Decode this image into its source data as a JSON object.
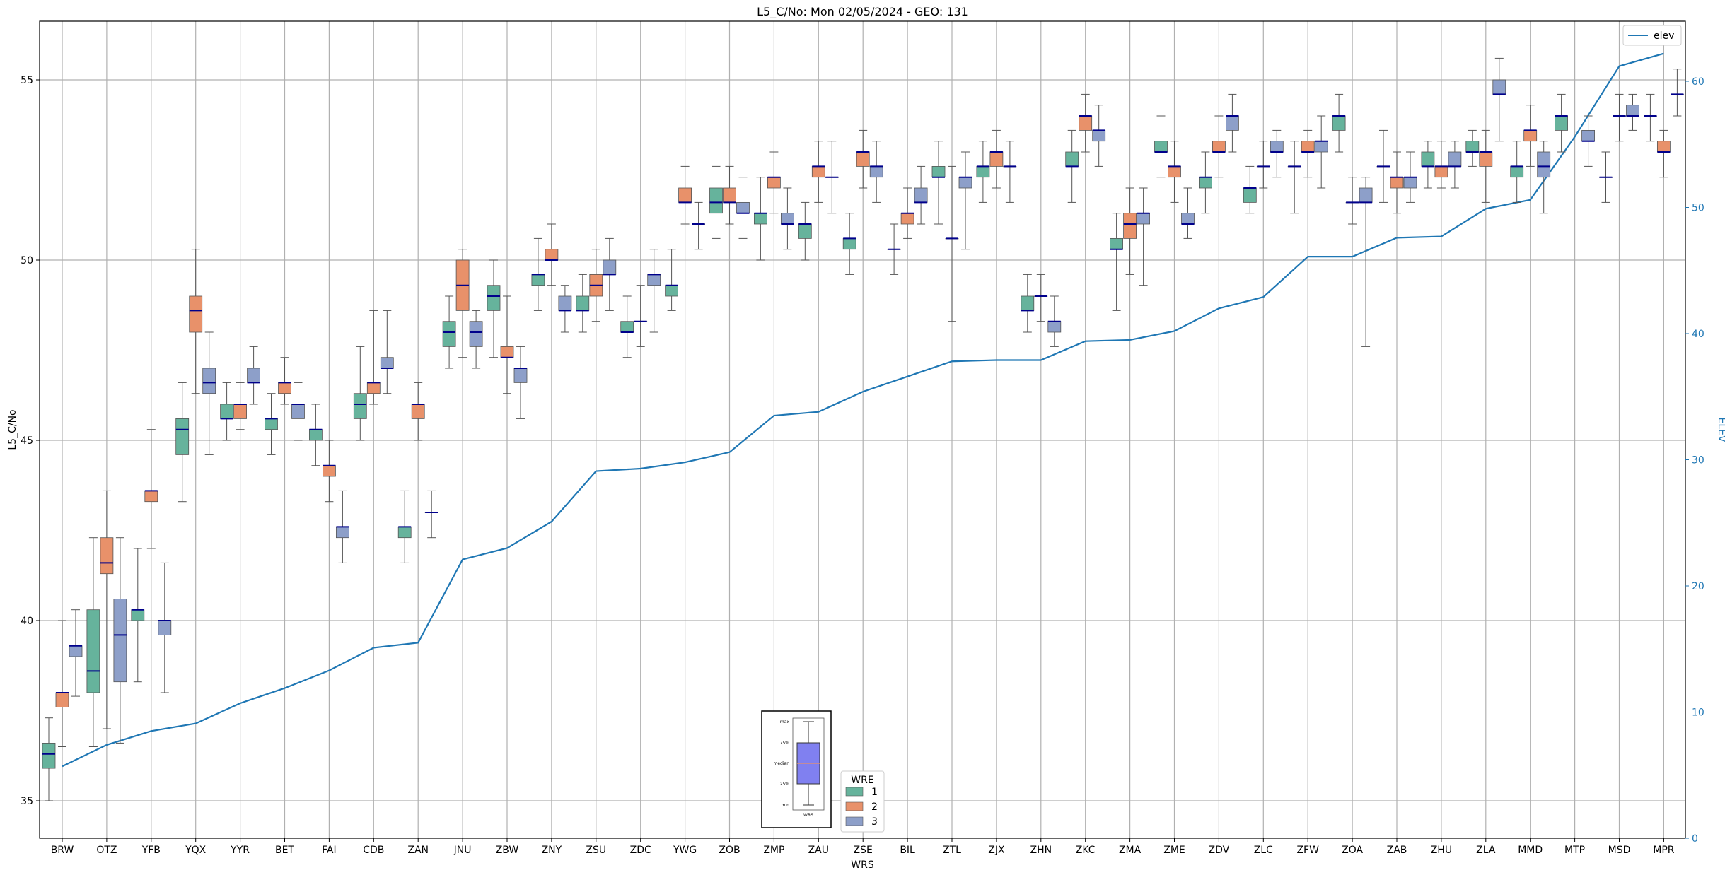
{
  "chart_data": {
    "type": "box",
    "title": "L5_C/No: Mon 02/05/2024 - GEO: 131",
    "xlabel": "WRS",
    "ylabel": "L5_C/No",
    "y2label": "ELEV",
    "ylim": [
      34,
      56.6
    ],
    "y2lim": [
      0,
      65
    ],
    "yticks": [
      35,
      40,
      45,
      50,
      55
    ],
    "y2ticks": [
      0,
      10,
      20,
      30,
      40,
      50,
      60
    ],
    "grid": true,
    "categories": [
      "BRW",
      "OTZ",
      "YFB",
      "YQX",
      "YYR",
      "BET",
      "FAI",
      "CDB",
      "ZAN",
      "JNU",
      "ZBW",
      "ZNY",
      "ZSU",
      "ZDC",
      "YWG",
      "ZOB",
      "ZMP",
      "ZAU",
      "ZSE",
      "BIL",
      "ZTL",
      "ZJX",
      "ZHN",
      "ZKC",
      "ZMA",
      "ZME",
      "ZDV",
      "ZLC",
      "ZFW",
      "ZOA",
      "ZAB",
      "ZHU",
      "ZLA",
      "MMD",
      "MTP",
      "MSD",
      "MPR"
    ],
    "elev": [
      5.7,
      7.4,
      8.5,
      9.1,
      10.7,
      11.9,
      13.3,
      15.1,
      15.5,
      22.1,
      23.0,
      25.1,
      29.1,
      29.3,
      29.8,
      30.6,
      33.5,
      33.8,
      35.4,
      36.6,
      37.8,
      37.9,
      37.9,
      39.4,
      39.5,
      40.2,
      42.0,
      42.9,
      46.1,
      46.1,
      47.6,
      47.7,
      49.9,
      50.6,
      55.6,
      61.2,
      62.2
    ],
    "wre_colors": {
      "1": "#66b39c",
      "2": "#e8916a",
      "3": "#8d9fc9"
    },
    "elev_color": "#1f77b4",
    "median_color": "#00008b",
    "boxes": [
      {
        "wrs": "BRW",
        "wre": 1,
        "min": 35.0,
        "q1": 35.9,
        "med": 36.3,
        "q3": 36.6,
        "max": 37.3
      },
      {
        "wrs": "BRW",
        "wre": 2,
        "min": 36.5,
        "q1": 37.6,
        "med": 38.0,
        "q3": 38.0,
        "max": 40.0
      },
      {
        "wrs": "BRW",
        "wre": 3,
        "min": 37.9,
        "q1": 39.0,
        "med": 39.3,
        "q3": 39.3,
        "max": 40.3
      },
      {
        "wrs": "OTZ",
        "wre": 1,
        "min": 36.5,
        "q1": 38.0,
        "med": 38.6,
        "q3": 40.3,
        "max": 42.3
      },
      {
        "wrs": "OTZ",
        "wre": 2,
        "min": 37.0,
        "q1": 41.3,
        "med": 41.6,
        "q3": 42.3,
        "max": 43.6
      },
      {
        "wrs": "OTZ",
        "wre": 3,
        "min": 36.6,
        "q1": 38.3,
        "med": 39.6,
        "q3": 40.6,
        "max": 42.3
      },
      {
        "wrs": "YFB",
        "wre": 1,
        "min": 38.3,
        "q1": 40.0,
        "med": 40.3,
        "q3": 40.3,
        "max": 42.0
      },
      {
        "wrs": "YFB",
        "wre": 2,
        "min": 42.0,
        "q1": 43.3,
        "med": 43.6,
        "q3": 43.6,
        "max": 45.3
      },
      {
        "wrs": "YFB",
        "wre": 3,
        "min": 38.0,
        "q1": 39.6,
        "med": 40.0,
        "q3": 40.0,
        "max": 41.6
      },
      {
        "wrs": "YQX",
        "wre": 1,
        "min": 43.3,
        "q1": 44.6,
        "med": 45.3,
        "q3": 45.6,
        "max": 46.6
      },
      {
        "wrs": "YQX",
        "wre": 2,
        "min": 46.3,
        "q1": 48.0,
        "med": 48.6,
        "q3": 49.0,
        "max": 50.3
      },
      {
        "wrs": "YQX",
        "wre": 3,
        "min": 44.6,
        "q1": 46.3,
        "med": 46.6,
        "q3": 47.0,
        "max": 48.0
      },
      {
        "wrs": "YYR",
        "wre": 1,
        "min": 45.0,
        "q1": 45.6,
        "med": 45.6,
        "q3": 46.0,
        "max": 46.6
      },
      {
        "wrs": "YYR",
        "wre": 2,
        "min": 45.3,
        "q1": 45.6,
        "med": 46.0,
        "q3": 46.0,
        "max": 46.6
      },
      {
        "wrs": "YYR",
        "wre": 3,
        "min": 46.0,
        "q1": 46.6,
        "med": 46.6,
        "q3": 47.0,
        "max": 47.6
      },
      {
        "wrs": "BET",
        "wre": 1,
        "min": 44.6,
        "q1": 45.3,
        "med": 45.6,
        "q3": 45.6,
        "max": 46.3
      },
      {
        "wrs": "BET",
        "wre": 2,
        "min": 46.0,
        "q1": 46.3,
        "med": 46.6,
        "q3": 46.6,
        "max": 47.3
      },
      {
        "wrs": "BET",
        "wre": 3,
        "min": 45.0,
        "q1": 45.6,
        "med": 46.0,
        "q3": 46.0,
        "max": 46.6
      },
      {
        "wrs": "FAI",
        "wre": 1,
        "min": 44.3,
        "q1": 45.0,
        "med": 45.3,
        "q3": 45.3,
        "max": 46.0
      },
      {
        "wrs": "FAI",
        "wre": 2,
        "min": 43.3,
        "q1": 44.0,
        "med": 44.3,
        "q3": 44.3,
        "max": 45.0
      },
      {
        "wrs": "FAI",
        "wre": 3,
        "min": 41.6,
        "q1": 42.3,
        "med": 42.6,
        "q3": 42.6,
        "max": 43.6
      },
      {
        "wrs": "CDB",
        "wre": 1,
        "min": 45.0,
        "q1": 45.6,
        "med": 46.0,
        "q3": 46.3,
        "max": 47.6
      },
      {
        "wrs": "CDB",
        "wre": 2,
        "min": 46.0,
        "q1": 46.3,
        "med": 46.6,
        "q3": 46.6,
        "max": 48.6
      },
      {
        "wrs": "CDB",
        "wre": 3,
        "min": 46.3,
        "q1": 47.0,
        "med": 47.0,
        "q3": 47.3,
        "max": 48.6
      },
      {
        "wrs": "ZAN",
        "wre": 1,
        "min": 41.6,
        "q1": 42.3,
        "med": 42.6,
        "q3": 42.6,
        "max": 43.6
      },
      {
        "wrs": "ZAN",
        "wre": 2,
        "min": 45.0,
        "q1": 45.6,
        "med": 46.0,
        "q3": 46.0,
        "max": 46.6
      },
      {
        "wrs": "ZAN",
        "wre": 3,
        "min": 42.3,
        "q1": 43.0,
        "med": 43.0,
        "q3": 43.0,
        "max": 43.6
      },
      {
        "wrs": "JNU",
        "wre": 1,
        "min": 47.0,
        "q1": 47.6,
        "med": 48.0,
        "q3": 48.3,
        "max": 49.0
      },
      {
        "wrs": "JNU",
        "wre": 2,
        "min": 47.3,
        "q1": 48.6,
        "med": 49.3,
        "q3": 50.0,
        "max": 50.3
      },
      {
        "wrs": "JNU",
        "wre": 3,
        "min": 47.0,
        "q1": 47.6,
        "med": 48.0,
        "q3": 48.3,
        "max": 48.6
      },
      {
        "wrs": "ZBW",
        "wre": 1,
        "min": 47.3,
        "q1": 48.6,
        "med": 49.0,
        "q3": 49.3,
        "max": 50.0
      },
      {
        "wrs": "ZBW",
        "wre": 2,
        "min": 46.3,
        "q1": 47.3,
        "med": 47.3,
        "q3": 47.6,
        "max": 49.0
      },
      {
        "wrs": "ZBW",
        "wre": 3,
        "min": 45.6,
        "q1": 46.6,
        "med": 47.0,
        "q3": 47.0,
        "max": 47.6
      },
      {
        "wrs": "ZNY",
        "wre": 1,
        "min": 48.6,
        "q1": 49.3,
        "med": 49.6,
        "q3": 49.6,
        "max": 50.6
      },
      {
        "wrs": "ZNY",
        "wre": 2,
        "min": 49.3,
        "q1": 50.0,
        "med": 50.0,
        "q3": 50.3,
        "max": 51.0
      },
      {
        "wrs": "ZNY",
        "wre": 3,
        "min": 48.0,
        "q1": 48.6,
        "med": 48.6,
        "q3": 49.0,
        "max": 49.3
      },
      {
        "wrs": "ZSU",
        "wre": 1,
        "min": 48.0,
        "q1": 48.6,
        "med": 48.6,
        "q3": 49.0,
        "max": 49.6
      },
      {
        "wrs": "ZSU",
        "wre": 2,
        "min": 48.3,
        "q1": 49.0,
        "med": 49.3,
        "q3": 49.6,
        "max": 50.3
      },
      {
        "wrs": "ZSU",
        "wre": 3,
        "min": 48.6,
        "q1": 49.6,
        "med": 49.6,
        "q3": 50.0,
        "max": 50.6
      },
      {
        "wrs": "ZDC",
        "wre": 1,
        "min": 47.3,
        "q1": 48.0,
        "med": 48.0,
        "q3": 48.3,
        "max": 49.0
      },
      {
        "wrs": "ZDC",
        "wre": 2,
        "min": 47.6,
        "q1": 48.3,
        "med": 48.3,
        "q3": 48.3,
        "max": 49.3
      },
      {
        "wrs": "ZDC",
        "wre": 3,
        "min": 48.0,
        "q1": 49.3,
        "med": 49.6,
        "q3": 49.6,
        "max": 50.3
      },
      {
        "wrs": "YWG",
        "wre": 1,
        "min": 48.6,
        "q1": 49.0,
        "med": 49.3,
        "q3": 49.3,
        "max": 50.3
      },
      {
        "wrs": "YWG",
        "wre": 2,
        "min": 51.0,
        "q1": 51.6,
        "med": 51.6,
        "q3": 52.0,
        "max": 52.6
      },
      {
        "wrs": "YWG",
        "wre": 3,
        "min": 50.3,
        "q1": 51.0,
        "med": 51.0,
        "q3": 51.0,
        "max": 51.6
      },
      {
        "wrs": "ZOB",
        "wre": 1,
        "min": 50.6,
        "q1": 51.3,
        "med": 51.6,
        "q3": 52.0,
        "max": 52.6
      },
      {
        "wrs": "ZOB",
        "wre": 2,
        "min": 51.0,
        "q1": 51.6,
        "med": 51.6,
        "q3": 52.0,
        "max": 52.6
      },
      {
        "wrs": "ZOB",
        "wre": 3,
        "min": 50.6,
        "q1": 51.3,
        "med": 51.3,
        "q3": 51.6,
        "max": 52.3
      },
      {
        "wrs": "ZMP",
        "wre": 1,
        "min": 50.0,
        "q1": 51.0,
        "med": 51.3,
        "q3": 51.3,
        "max": 52.3
      },
      {
        "wrs": "ZMP",
        "wre": 2,
        "min": 51.3,
        "q1": 52.0,
        "med": 52.3,
        "q3": 52.3,
        "max": 53.0
      },
      {
        "wrs": "ZMP",
        "wre": 3,
        "min": 50.3,
        "q1": 51.0,
        "med": 51.0,
        "q3": 51.3,
        "max": 52.0
      },
      {
        "wrs": "ZAU",
        "wre": 1,
        "min": 50.0,
        "q1": 50.6,
        "med": 51.0,
        "q3": 51.0,
        "max": 51.6
      },
      {
        "wrs": "ZAU",
        "wre": 2,
        "min": 51.6,
        "q1": 52.3,
        "med": 52.6,
        "q3": 52.6,
        "max": 53.3
      },
      {
        "wrs": "ZAU",
        "wre": 3,
        "min": 51.3,
        "q1": 52.3,
        "med": 52.3,
        "q3": 52.3,
        "max": 53.3
      },
      {
        "wrs": "ZSE",
        "wre": 1,
        "min": 49.6,
        "q1": 50.3,
        "med": 50.6,
        "q3": 50.6,
        "max": 51.3
      },
      {
        "wrs": "ZSE",
        "wre": 2,
        "min": 52.0,
        "q1": 52.6,
        "med": 53.0,
        "q3": 53.0,
        "max": 53.6
      },
      {
        "wrs": "ZSE",
        "wre": 3,
        "min": 51.6,
        "q1": 52.3,
        "med": 52.6,
        "q3": 52.6,
        "max": 53.3
      },
      {
        "wrs": "BIL",
        "wre": 1,
        "min": 49.6,
        "q1": 50.3,
        "med": 50.3,
        "q3": 50.3,
        "max": 51.0
      },
      {
        "wrs": "BIL",
        "wre": 2,
        "min": 50.6,
        "q1": 51.0,
        "med": 51.3,
        "q3": 51.3,
        "max": 52.0
      },
      {
        "wrs": "BIL",
        "wre": 3,
        "min": 51.0,
        "q1": 51.6,
        "med": 51.6,
        "q3": 52.0,
        "max": 52.6
      },
      {
        "wrs": "ZTL",
        "wre": 1,
        "min": 51.0,
        "q1": 52.3,
        "med": 52.3,
        "q3": 52.6,
        "max": 53.3
      },
      {
        "wrs": "ZTL",
        "wre": 2,
        "min": 48.3,
        "q1": 50.6,
        "med": 50.6,
        "q3": 50.6,
        "max": 52.6
      },
      {
        "wrs": "ZTL",
        "wre": 3,
        "min": 50.3,
        "q1": 52.0,
        "med": 52.3,
        "q3": 52.3,
        "max": 53.0
      },
      {
        "wrs": "ZJX",
        "wre": 1,
        "min": 51.6,
        "q1": 52.3,
        "med": 52.6,
        "q3": 52.6,
        "max": 53.3
      },
      {
        "wrs": "ZJX",
        "wre": 2,
        "min": 52.0,
        "q1": 52.6,
        "med": 53.0,
        "q3": 53.0,
        "max": 53.6
      },
      {
        "wrs": "ZJX",
        "wre": 3,
        "min": 51.6,
        "q1": 52.6,
        "med": 52.6,
        "q3": 52.6,
        "max": 53.3
      },
      {
        "wrs": "ZHN",
        "wre": 1,
        "min": 48.0,
        "q1": 48.6,
        "med": 48.6,
        "q3": 49.0,
        "max": 49.6
      },
      {
        "wrs": "ZHN",
        "wre": 2,
        "min": 48.3,
        "q1": 49.0,
        "med": 49.0,
        "q3": 49.0,
        "max": 49.6
      },
      {
        "wrs": "ZHN",
        "wre": 3,
        "min": 47.6,
        "q1": 48.0,
        "med": 48.3,
        "q3": 48.3,
        "max": 49.0
      },
      {
        "wrs": "ZKC",
        "wre": 1,
        "min": 51.6,
        "q1": 52.6,
        "med": 52.6,
        "q3": 53.0,
        "max": 53.6
      },
      {
        "wrs": "ZKC",
        "wre": 2,
        "min": 53.0,
        "q1": 53.6,
        "med": 54.0,
        "q3": 54.0,
        "max": 54.6
      },
      {
        "wrs": "ZKC",
        "wre": 3,
        "min": 52.6,
        "q1": 53.3,
        "med": 53.6,
        "q3": 53.6,
        "max": 54.3
      },
      {
        "wrs": "ZMA",
        "wre": 1,
        "min": 48.6,
        "q1": 50.3,
        "med": 50.3,
        "q3": 50.6,
        "max": 51.3
      },
      {
        "wrs": "ZMA",
        "wre": 2,
        "min": 49.6,
        "q1": 50.6,
        "med": 51.0,
        "q3": 51.3,
        "max": 52.0
      },
      {
        "wrs": "ZMA",
        "wre": 3,
        "min": 49.3,
        "q1": 51.0,
        "med": 51.3,
        "q3": 51.3,
        "max": 52.0
      },
      {
        "wrs": "ZME",
        "wre": 1,
        "min": 52.3,
        "q1": 53.0,
        "med": 53.0,
        "q3": 53.3,
        "max": 54.0
      },
      {
        "wrs": "ZME",
        "wre": 2,
        "min": 51.6,
        "q1": 52.3,
        "med": 52.6,
        "q3": 52.6,
        "max": 53.3
      },
      {
        "wrs": "ZME",
        "wre": 3,
        "min": 50.6,
        "q1": 51.0,
        "med": 51.0,
        "q3": 51.3,
        "max": 52.0
      },
      {
        "wrs": "ZDV",
        "wre": 1,
        "min": 51.3,
        "q1": 52.0,
        "med": 52.3,
        "q3": 52.3,
        "max": 53.0
      },
      {
        "wrs": "ZDV",
        "wre": 2,
        "min": 52.3,
        "q1": 53.0,
        "med": 53.0,
        "q3": 53.3,
        "max": 54.0
      },
      {
        "wrs": "ZDV",
        "wre": 3,
        "min": 53.0,
        "q1": 53.6,
        "med": 54.0,
        "q3": 54.0,
        "max": 54.6
      },
      {
        "wrs": "ZLC",
        "wre": 1,
        "min": 51.3,
        "q1": 51.6,
        "med": 52.0,
        "q3": 52.0,
        "max": 52.6
      },
      {
        "wrs": "ZLC",
        "wre": 2,
        "min": 52.0,
        "q1": 52.6,
        "med": 52.6,
        "q3": 52.6,
        "max": 53.3
      },
      {
        "wrs": "ZLC",
        "wre": 3,
        "min": 52.3,
        "q1": 53.0,
        "med": 53.0,
        "q3": 53.3,
        "max": 53.6
      },
      {
        "wrs": "ZFW",
        "wre": 1,
        "min": 51.3,
        "q1": 52.6,
        "med": 52.6,
        "q3": 52.6,
        "max": 53.3
      },
      {
        "wrs": "ZFW",
        "wre": 2,
        "min": 52.3,
        "q1": 53.0,
        "med": 53.0,
        "q3": 53.3,
        "max": 53.6
      },
      {
        "wrs": "ZFW",
        "wre": 3,
        "min": 52.0,
        "q1": 53.0,
        "med": 53.3,
        "q3": 53.3,
        "max": 54.0
      },
      {
        "wrs": "ZOA",
        "wre": 1,
        "min": 53.0,
        "q1": 53.6,
        "med": 54.0,
        "q3": 54.0,
        "max": 54.6
      },
      {
        "wrs": "ZOA",
        "wre": 2,
        "min": 51.0,
        "q1": 51.6,
        "med": 51.6,
        "q3": 51.6,
        "max": 52.3
      },
      {
        "wrs": "ZOA",
        "wre": 3,
        "min": 47.6,
        "q1": 51.6,
        "med": 51.6,
        "q3": 52.0,
        "max": 52.3
      },
      {
        "wrs": "ZAB",
        "wre": 1,
        "min": 51.6,
        "q1": 52.6,
        "med": 52.6,
        "q3": 52.6,
        "max": 53.6
      },
      {
        "wrs": "ZAB",
        "wre": 2,
        "min": 51.3,
        "q1": 52.0,
        "med": 52.3,
        "q3": 52.3,
        "max": 53.0
      },
      {
        "wrs": "ZAB",
        "wre": 3,
        "min": 51.6,
        "q1": 52.0,
        "med": 52.3,
        "q3": 52.3,
        "max": 53.0
      },
      {
        "wrs": "ZHU",
        "wre": 1,
        "min": 52.0,
        "q1": 52.6,
        "med": 52.6,
        "q3": 53.0,
        "max": 53.3
      },
      {
        "wrs": "ZHU",
        "wre": 2,
        "min": 52.0,
        "q1": 52.3,
        "med": 52.6,
        "q3": 52.6,
        "max": 53.3
      },
      {
        "wrs": "ZHU",
        "wre": 3,
        "min": 52.0,
        "q1": 52.6,
        "med": 52.6,
        "q3": 53.0,
        "max": 53.3
      },
      {
        "wrs": "ZLA",
        "wre": 1,
        "min": 52.6,
        "q1": 53.0,
        "med": 53.0,
        "q3": 53.3,
        "max": 53.6
      },
      {
        "wrs": "ZLA",
        "wre": 2,
        "min": 51.6,
        "q1": 52.6,
        "med": 53.0,
        "q3": 53.0,
        "max": 53.6
      },
      {
        "wrs": "ZLA",
        "wre": 3,
        "min": 53.3,
        "q1": 54.6,
        "med": 54.6,
        "q3": 55.0,
        "max": 55.6
      },
      {
        "wrs": "MMD",
        "wre": 1,
        "min": 51.6,
        "q1": 52.3,
        "med": 52.6,
        "q3": 52.6,
        "max": 53.3
      },
      {
        "wrs": "MMD",
        "wre": 2,
        "min": 52.6,
        "q1": 53.3,
        "med": 53.6,
        "q3": 53.6,
        "max": 54.3
      },
      {
        "wrs": "MMD",
        "wre": 3,
        "min": 51.3,
        "q1": 52.3,
        "med": 52.6,
        "q3": 53.0,
        "max": 53.3
      },
      {
        "wrs": "MTP",
        "wre": 1,
        "min": 53.0,
        "q1": 53.6,
        "med": 54.0,
        "q3": 54.0,
        "max": 54.6
      },
      {
        "wrs": "MTP",
        "wre": 2,
        "min": null,
        "q1": null,
        "med": null,
        "q3": null,
        "max": null
      },
      {
        "wrs": "MTP",
        "wre": 3,
        "min": 52.6,
        "q1": 53.3,
        "med": 53.3,
        "q3": 53.6,
        "max": 54.0
      },
      {
        "wrs": "MSD",
        "wre": 1,
        "min": 51.6,
        "q1": 52.3,
        "med": 52.3,
        "q3": 52.3,
        "max": 53.0
      },
      {
        "wrs": "MSD",
        "wre": 2,
        "min": 53.3,
        "q1": 54.0,
        "med": 54.0,
        "q3": 54.0,
        "max": 54.6
      },
      {
        "wrs": "MSD",
        "wre": 3,
        "min": 53.6,
        "q1": 54.0,
        "med": 54.0,
        "q3": 54.3,
        "max": 54.6
      },
      {
        "wrs": "MPR",
        "wre": 1,
        "min": 53.3,
        "q1": 54.0,
        "med": 54.0,
        "q3": 54.0,
        "max": 54.6
      },
      {
        "wrs": "MPR",
        "wre": 2,
        "min": 52.3,
        "q1": 53.0,
        "med": 53.0,
        "q3": 53.3,
        "max": 53.6
      },
      {
        "wrs": "MPR",
        "wre": 3,
        "min": 54.0,
        "q1": 54.6,
        "med": 54.6,
        "q3": 54.6,
        "max": 55.3
      }
    ],
    "legend_wre": {
      "title": "WRE",
      "entries": [
        "1",
        "2",
        "3"
      ],
      "position": "bottom-center"
    },
    "legend_elev": {
      "label": "elev",
      "position": "top-right"
    },
    "inset_key": {
      "labels": [
        "max",
        "75%",
        "median",
        "25%",
        "min"
      ],
      "xlabel": "WRS"
    }
  }
}
